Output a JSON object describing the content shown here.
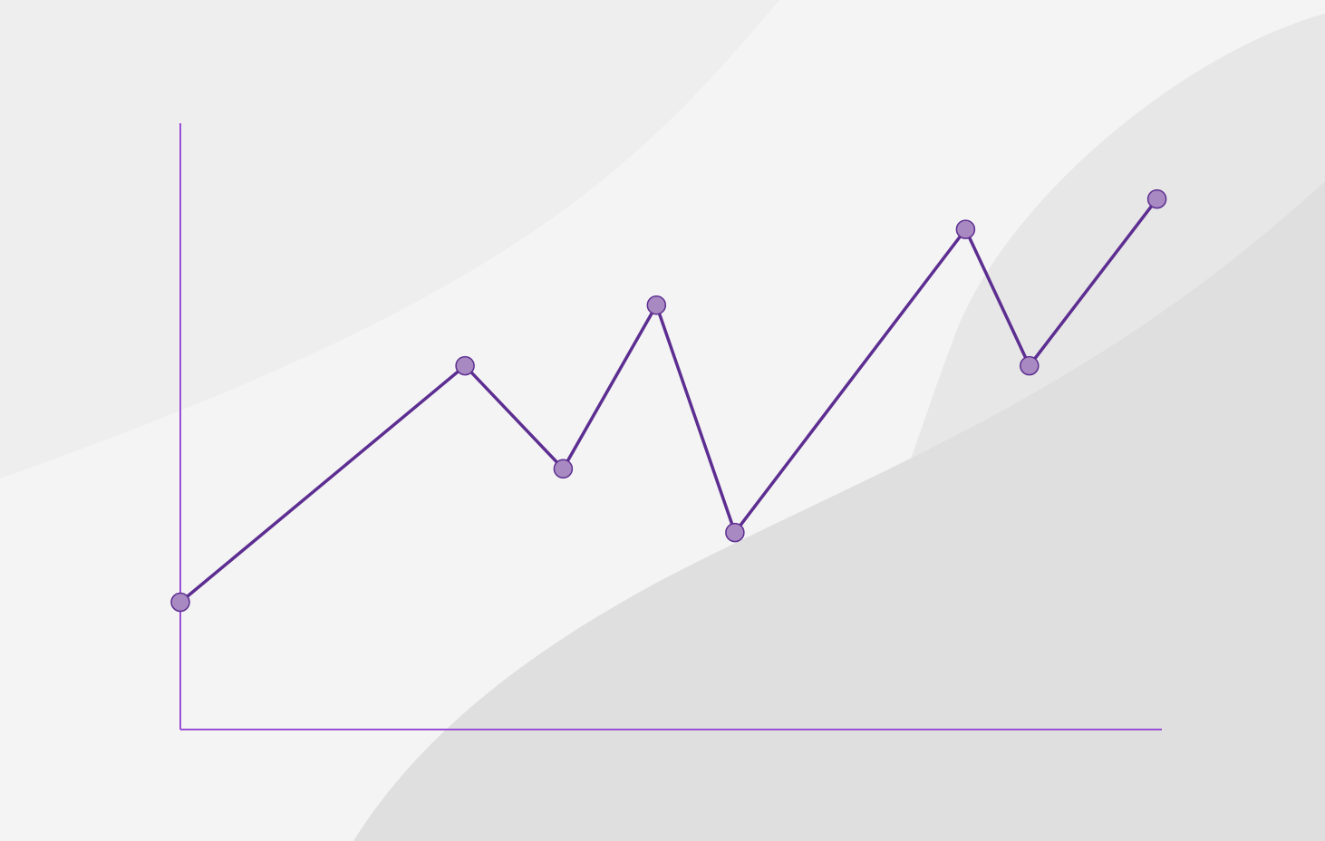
{
  "colors": {
    "background": "#f4f4f4",
    "background_shape_light": "#eeeeee",
    "background_shape_mid": "#e7e7e7",
    "background_shape_dark": "#dfdfdf",
    "axis": "#9b4fd6",
    "line": "#5d2e91",
    "marker_fill": "#a889c2",
    "marker_stroke": "#5d2e91"
  },
  "chart_data": {
    "type": "line",
    "title": "",
    "xlabel": "",
    "ylabel": "",
    "x": [
      0,
      2.9,
      3.9,
      4.85,
      5.65,
      8.0,
      8.65,
      9.95
    ],
    "y": [
      2.1,
      6.0,
      4.3,
      7.0,
      3.25,
      8.25,
      6.0,
      8.75
    ],
    "xlim": [
      0,
      10
    ],
    "ylim": [
      0,
      10
    ],
    "grid": false,
    "legend": false,
    "axis_ticks": false,
    "marker": "circle"
  }
}
